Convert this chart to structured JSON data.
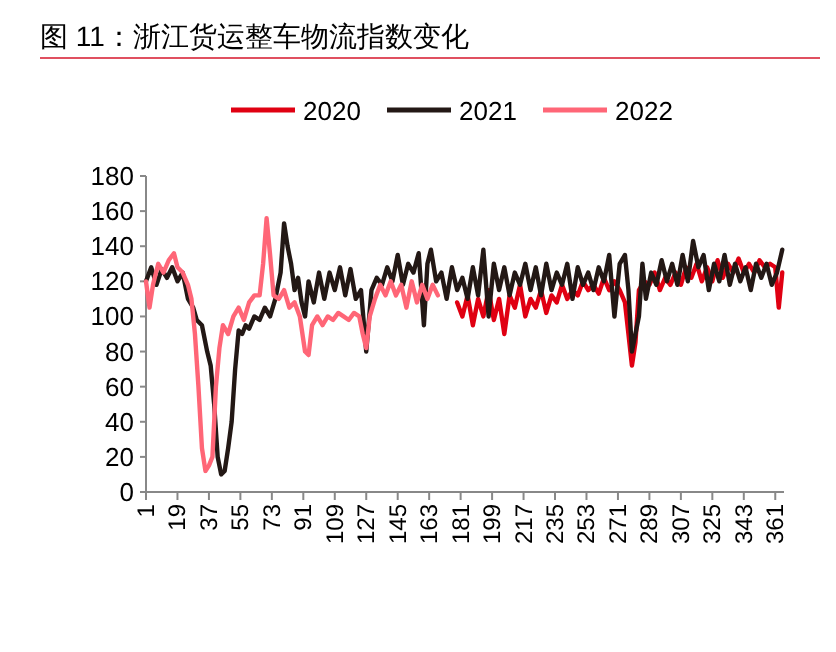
{
  "chart_data": {
    "type": "line",
    "title": "图 11：浙江货运整车物流指数变化",
    "xlim": [
      1,
      366
    ],
    "xticks": [
      1,
      19,
      37,
      55,
      73,
      91,
      109,
      127,
      145,
      163,
      181,
      199,
      217,
      235,
      253,
      271,
      289,
      307,
      325,
      343,
      361
    ],
    "ylim": [
      0,
      180
    ],
    "yticks": [
      0,
      20,
      40,
      60,
      80,
      100,
      120,
      140,
      160,
      180
    ],
    "legend": "top",
    "grid": false,
    "marker": "none",
    "line_style": "solid",
    "series": [
      {
        "name": "2020",
        "color": "#e00012",
        "x": [
          179,
          182,
          185,
          188,
          191,
          194,
          197,
          200,
          203,
          206,
          209,
          212,
          215,
          218,
          221,
          224,
          227,
          230,
          233,
          236,
          239,
          242,
          245,
          248,
          251,
          254,
          257,
          260,
          263,
          266,
          269,
          272,
          275,
          277,
          279,
          281,
          283,
          286,
          289,
          292,
          295,
          298,
          301,
          304,
          307,
          310,
          313,
          316,
          319,
          322,
          325,
          328,
          331,
          334,
          337,
          340,
          343,
          346,
          349,
          352,
          355,
          358,
          361,
          363,
          365
        ],
        "values": [
          108,
          100,
          112,
          95,
          110,
          100,
          115,
          98,
          110,
          90,
          112,
          105,
          118,
          100,
          110,
          105,
          115,
          102,
          112,
          108,
          118,
          110,
          115,
          112,
          120,
          115,
          118,
          113,
          122,
          115,
          120,
          115,
          108,
          90,
          72,
          85,
          115,
          120,
          118,
          125,
          115,
          122,
          118,
          125,
          118,
          128,
          122,
          130,
          120,
          128,
          120,
          132,
          122,
          130,
          125,
          133,
          125,
          130,
          125,
          132,
          128,
          130,
          128,
          105,
          125
        ]
      },
      {
        "name": "2021",
        "color": "#231815",
        "x": [
          1,
          4,
          7,
          10,
          13,
          16,
          19,
          22,
          25,
          28,
          30,
          33,
          36,
          38,
          40,
          42,
          44,
          46,
          48,
          50,
          52,
          54,
          56,
          58,
          60,
          63,
          66,
          69,
          72,
          75,
          78,
          80,
          82,
          84,
          86,
          88,
          90,
          92,
          94,
          97,
          100,
          103,
          106,
          109,
          112,
          115,
          118,
          121,
          124,
          127,
          130,
          133,
          136,
          139,
          142,
          145,
          148,
          151,
          154,
          157,
          160,
          162,
          164,
          167,
          170,
          173,
          176,
          179,
          182,
          185,
          188,
          191,
          194,
          197,
          200,
          203,
          206,
          209,
          212,
          215,
          218,
          221,
          224,
          227,
          230,
          233,
          236,
          239,
          242,
          245,
          248,
          251,
          254,
          257,
          260,
          263,
          266,
          269,
          272,
          275,
          277,
          279,
          281,
          283,
          285,
          287,
          290,
          293,
          296,
          299,
          302,
          305,
          308,
          311,
          314,
          317,
          320,
          323,
          326,
          329,
          332,
          335,
          338,
          341,
          344,
          347,
          350,
          353,
          356,
          359,
          362,
          365
        ],
        "values": [
          120,
          128,
          118,
          127,
          122,
          128,
          120,
          125,
          110,
          105,
          98,
          95,
          80,
          72,
          50,
          20,
          10,
          12,
          25,
          40,
          70,
          92,
          90,
          95,
          93,
          100,
          98,
          105,
          100,
          110,
          125,
          153,
          140,
          130,
          115,
          122,
          108,
          100,
          120,
          108,
          125,
          110,
          125,
          115,
          128,
          112,
          127,
          110,
          115,
          80,
          115,
          122,
          118,
          128,
          120,
          135,
          118,
          130,
          125,
          136,
          95,
          130,
          138,
          120,
          125,
          110,
          128,
          115,
          122,
          110,
          128,
          112,
          138,
          100,
          130,
          115,
          128,
          112,
          125,
          118,
          130,
          115,
          128,
          112,
          130,
          115,
          125,
          118,
          130,
          110,
          128,
          118,
          125,
          115,
          128,
          120,
          135,
          100,
          130,
          135,
          115,
          80,
          90,
          100,
          130,
          110,
          125,
          118,
          132,
          120,
          130,
          118,
          135,
          120,
          143,
          128,
          135,
          115,
          130,
          120,
          135,
          118,
          130,
          120,
          128,
          115,
          130,
          122,
          130,
          118,
          125,
          138
        ]
      },
      {
        "name": "2022",
        "color": "#ff6677",
        "x": [
          1,
          3,
          5,
          8,
          11,
          14,
          17,
          19,
          22,
          25,
          27,
          29,
          31,
          33,
          35,
          37,
          39,
          41,
          43,
          45,
          48,
          51,
          54,
          57,
          60,
          63,
          66,
          68,
          70,
          72,
          74,
          77,
          80,
          83,
          86,
          89,
          92,
          94,
          96,
          99,
          102,
          105,
          108,
          111,
          114,
          117,
          120,
          123,
          125,
          127,
          129,
          132,
          135,
          138,
          141,
          144,
          147,
          150,
          153,
          156,
          159,
          162,
          165,
          168
        ],
        "values": [
          120,
          105,
          118,
          130,
          125,
          132,
          136,
          128,
          125,
          118,
          110,
          90,
          60,
          25,
          12,
          15,
          20,
          60,
          82,
          95,
          90,
          100,
          105,
          98,
          108,
          112,
          112,
          130,
          156,
          135,
          112,
          110,
          115,
          105,
          108,
          100,
          80,
          78,
          95,
          100,
          95,
          100,
          98,
          102,
          100,
          98,
          102,
          100,
          90,
          82,
          100,
          110,
          118,
          112,
          120,
          112,
          118,
          105,
          120,
          108,
          118,
          110,
          118,
          112
        ]
      }
    ]
  }
}
